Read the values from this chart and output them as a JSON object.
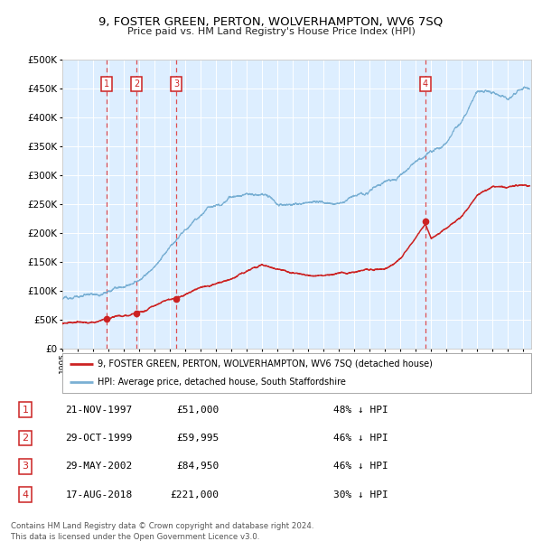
{
  "title": "9, FOSTER GREEN, PERTON, WOLVERHAMPTON, WV6 7SQ",
  "subtitle": "Price paid vs. HM Land Registry's House Price Index (HPI)",
  "bg_color": "#ddeeff",
  "grid_color": "#ffffff",
  "hpi_color": "#7ab0d4",
  "price_color": "#cc2222",
  "sales": [
    {
      "date_num": 1997.896,
      "price": 51000,
      "label": "1"
    },
    {
      "date_num": 1999.83,
      "price": 59995,
      "label": "2"
    },
    {
      "date_num": 2002.411,
      "price": 84950,
      "label": "3"
    },
    {
      "date_num": 2018.63,
      "price": 221000,
      "label": "4"
    }
  ],
  "legend_entries": [
    "9, FOSTER GREEN, PERTON, WOLVERHAMPTON, WV6 7SQ (detached house)",
    "HPI: Average price, detached house, South Staffordshire"
  ],
  "table_rows": [
    [
      "1",
      "21-NOV-1997",
      "£51,000",
      "48% ↓ HPI"
    ],
    [
      "2",
      "29-OCT-1999",
      "£59,995",
      "46% ↓ HPI"
    ],
    [
      "3",
      "29-MAY-2002",
      "£84,950",
      "46% ↓ HPI"
    ],
    [
      "4",
      "17-AUG-2018",
      "£221,000",
      "30% ↓ HPI"
    ]
  ],
  "footer": "Contains HM Land Registry data © Crown copyright and database right 2024.\nThis data is licensed under the Open Government Licence v3.0.",
  "ylim": [
    0,
    500000
  ],
  "yticks": [
    0,
    50000,
    100000,
    150000,
    200000,
    250000,
    300000,
    350000,
    400000,
    450000,
    500000
  ],
  "xlim_start": 1995.0,
  "xlim_end": 2025.5,
  "hpi_knots_x": [
    1995.0,
    1996.0,
    1997.0,
    1998.0,
    1999.0,
    2000.0,
    2001.0,
    2002.0,
    2003.0,
    2004.0,
    2005.0,
    2006.0,
    2007.0,
    2008.0,
    2008.5,
    2009.0,
    2010.0,
    2011.0,
    2012.0,
    2013.0,
    2014.0,
    2015.0,
    2016.0,
    2017.0,
    2018.0,
    2019.0,
    2020.0,
    2021.0,
    2022.0,
    2023.0,
    2024.0,
    2025.0
  ],
  "hpi_knots_y": [
    85000,
    90000,
    96000,
    103000,
    110000,
    120000,
    145000,
    175000,
    205000,
    235000,
    258000,
    268000,
    275000,
    272000,
    265000,
    248000,
    250000,
    248000,
    248000,
    252000,
    262000,
    272000,
    285000,
    300000,
    318000,
    335000,
    348000,
    385000,
    430000,
    430000,
    420000,
    440000
  ],
  "price_knots_x": [
    1995.0,
    1997.0,
    1997.896,
    1999.0,
    1999.83,
    2001.0,
    2002.411,
    2004.0,
    2006.0,
    2008.0,
    2010.0,
    2012.0,
    2014.0,
    2016.0,
    2017.0,
    2018.63,
    2019.0,
    2020.0,
    2021.0,
    2022.0,
    2023.0,
    2024.0,
    2025.0
  ],
  "price_knots_y": [
    43000,
    48000,
    51000,
    56000,
    59995,
    70000,
    84950,
    105000,
    125000,
    148000,
    130000,
    128000,
    135000,
    148000,
    162000,
    221000,
    195000,
    215000,
    240000,
    275000,
    290000,
    285000,
    290000
  ]
}
